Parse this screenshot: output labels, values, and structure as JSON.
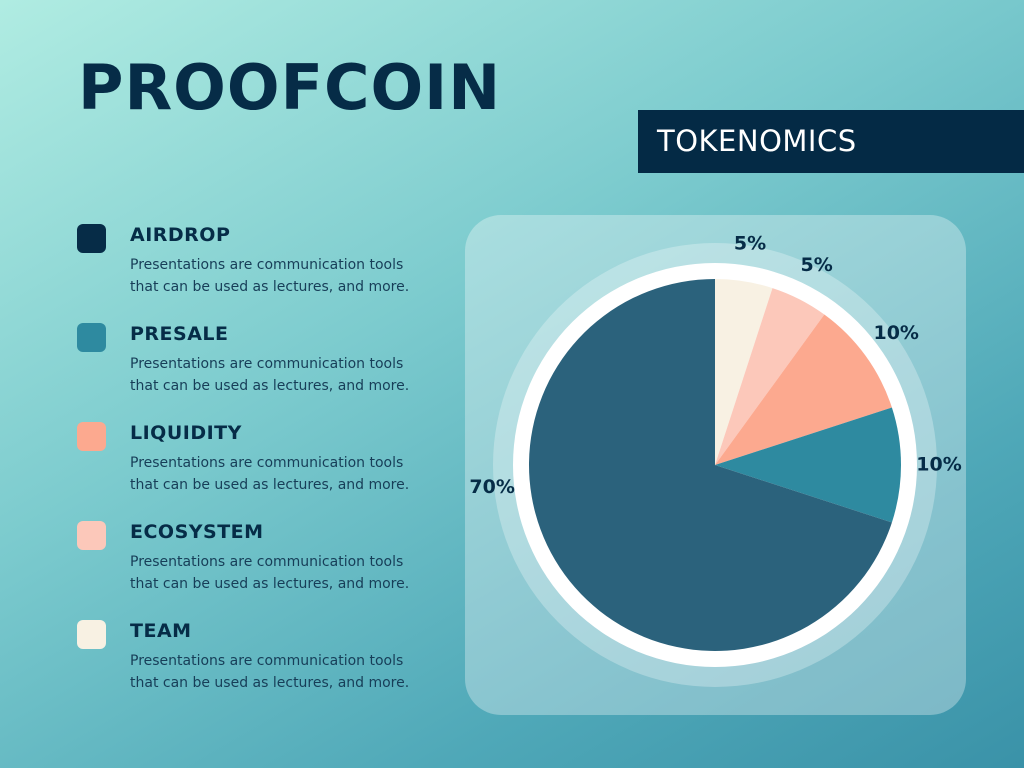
{
  "title": "PROOFCOIN",
  "subtitle": "TOKENOMICS",
  "legend": [
    {
      "label": "AIRDROP",
      "description": "Presentations are communication tools that can be used as lectures, and more.",
      "color": "#062c47"
    },
    {
      "label": "PRESALE",
      "description": "Presentations are communication tools that can be used as lectures, and more.",
      "color": "#2e8aa0"
    },
    {
      "label": "LIQUIDITY",
      "description": "Presentations are communication tools that can be used as lectures, and more.",
      "color": "#fca98f"
    },
    {
      "label": "ECOSYSTEM",
      "description": "Presentations are communication tools that can be used as lectures, and more.",
      "color": "#fcc8ba"
    },
    {
      "label": "TEAM",
      "description": "Presentations are communication tools that can be used as lectures, and more.",
      "color": "#f8f1e3"
    }
  ],
  "chart_data": {
    "type": "pie",
    "slices": [
      {
        "value": 5,
        "label": "5%",
        "color": "#f8f1e3"
      },
      {
        "value": 5,
        "label": "5%",
        "color": "#fcc8ba"
      },
      {
        "value": 10,
        "label": "10%",
        "color": "#fca98f"
      },
      {
        "value": 10,
        "label": "10%",
        "color": "#2e8aa0"
      },
      {
        "value": 70,
        "label": "70%",
        "color": "#2b627c"
      }
    ]
  }
}
